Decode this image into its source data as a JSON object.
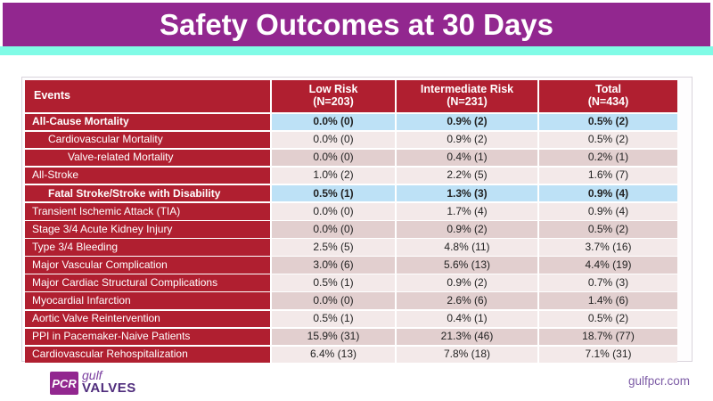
{
  "title": "Safety Outcomes at 30 Days",
  "table": {
    "header": {
      "events": "Events",
      "cols": [
        {
          "label": "Low Risk",
          "n": "(N=203)"
        },
        {
          "label": "Intermediate Risk",
          "n": "(N=231)"
        },
        {
          "label": "Total",
          "n": "(N=434)"
        }
      ]
    },
    "rows": [
      {
        "label": "All-Cause Mortality",
        "values": [
          "0.0% (0)",
          "0.9% (2)",
          "0.5% (2)"
        ],
        "style": "highlight",
        "indent": 0,
        "bold": true
      },
      {
        "label": "Cardiovascular Mortality",
        "values": [
          "0.0% (0)",
          "0.9% (2)",
          "0.5% (2)"
        ],
        "style": "light",
        "indent": 1,
        "bold": false
      },
      {
        "label": "Valve-related Mortality",
        "values": [
          "0.0% (0)",
          "0.4% (1)",
          "0.2% (1)"
        ],
        "style": "dark",
        "indent": 2,
        "bold": false
      },
      {
        "label": "All-Stroke",
        "values": [
          "1.0% (2)",
          "2.2% (5)",
          "1.6% (7)"
        ],
        "style": "light",
        "indent": 0,
        "bold": false
      },
      {
        "label": "Fatal Stroke/Stroke with Disability",
        "values": [
          "0.5% (1)",
          "1.3% (3)",
          "0.9% (4)"
        ],
        "style": "highlight",
        "indent": 1,
        "bold": true
      },
      {
        "label": "Transient Ischemic Attack (TIA)",
        "values": [
          "0.0% (0)",
          "1.7% (4)",
          "0.9% (4)"
        ],
        "style": "light",
        "indent": 0,
        "bold": false
      },
      {
        "label": "Stage 3/4 Acute Kidney Injury",
        "values": [
          "0.0% (0)",
          "0.9% (2)",
          "0.5% (2)"
        ],
        "style": "dark",
        "indent": 0,
        "bold": false
      },
      {
        "label": "Type 3/4 Bleeding",
        "values": [
          "2.5% (5)",
          "4.8% (11)",
          "3.7% (16)"
        ],
        "style": "light",
        "indent": 0,
        "bold": false
      },
      {
        "label": "Major Vascular Complication",
        "values": [
          "3.0% (6)",
          "5.6% (13)",
          "4.4% (19)"
        ],
        "style": "dark",
        "indent": 0,
        "bold": false
      },
      {
        "label": "Major Cardiac Structural Complications",
        "values": [
          "0.5% (1)",
          "0.9% (2)",
          "0.7% (3)"
        ],
        "style": "light",
        "indent": 0,
        "bold": false
      },
      {
        "label": "Myocardial Infarction",
        "values": [
          "0.0% (0)",
          "2.6% (6)",
          "1.4% (6)"
        ],
        "style": "dark",
        "indent": 0,
        "bold": false
      },
      {
        "label": "Aortic Valve Reintervention",
        "values": [
          "0.5% (1)",
          "0.4% (1)",
          "0.5% (2)"
        ],
        "style": "light",
        "indent": 0,
        "bold": false
      },
      {
        "label": "PPI in Pacemaker-Naive Patients",
        "values": [
          "15.9% (31)",
          "21.3% (46)",
          "18.7% (77)"
        ],
        "style": "dark",
        "indent": 0,
        "bold": false
      },
      {
        "label": "Cardiovascular Rehospitalization",
        "values": [
          "6.4% (13)",
          "7.8% (18)",
          "7.1% (31)"
        ],
        "style": "light",
        "indent": 0,
        "bold": false
      }
    ]
  },
  "footer": {
    "logo": {
      "pcr": "PCR",
      "gulf": "gulf",
      "valves": "VALVES"
    },
    "website": "gulfpcr.com"
  },
  "colors": {
    "purple": "#92278F",
    "cyan": "#80FBE6",
    "red": "#B01F30",
    "blue-row": "#BDE1F6",
    "light-row": "#F3E9E9",
    "dark-row": "#E2CFCF",
    "frame-border": "#D9D4DC",
    "gulf-purple": "#7B3FA0",
    "valves-purple": "#4F2C7C",
    "web-purple": "#7D5CA6"
  }
}
